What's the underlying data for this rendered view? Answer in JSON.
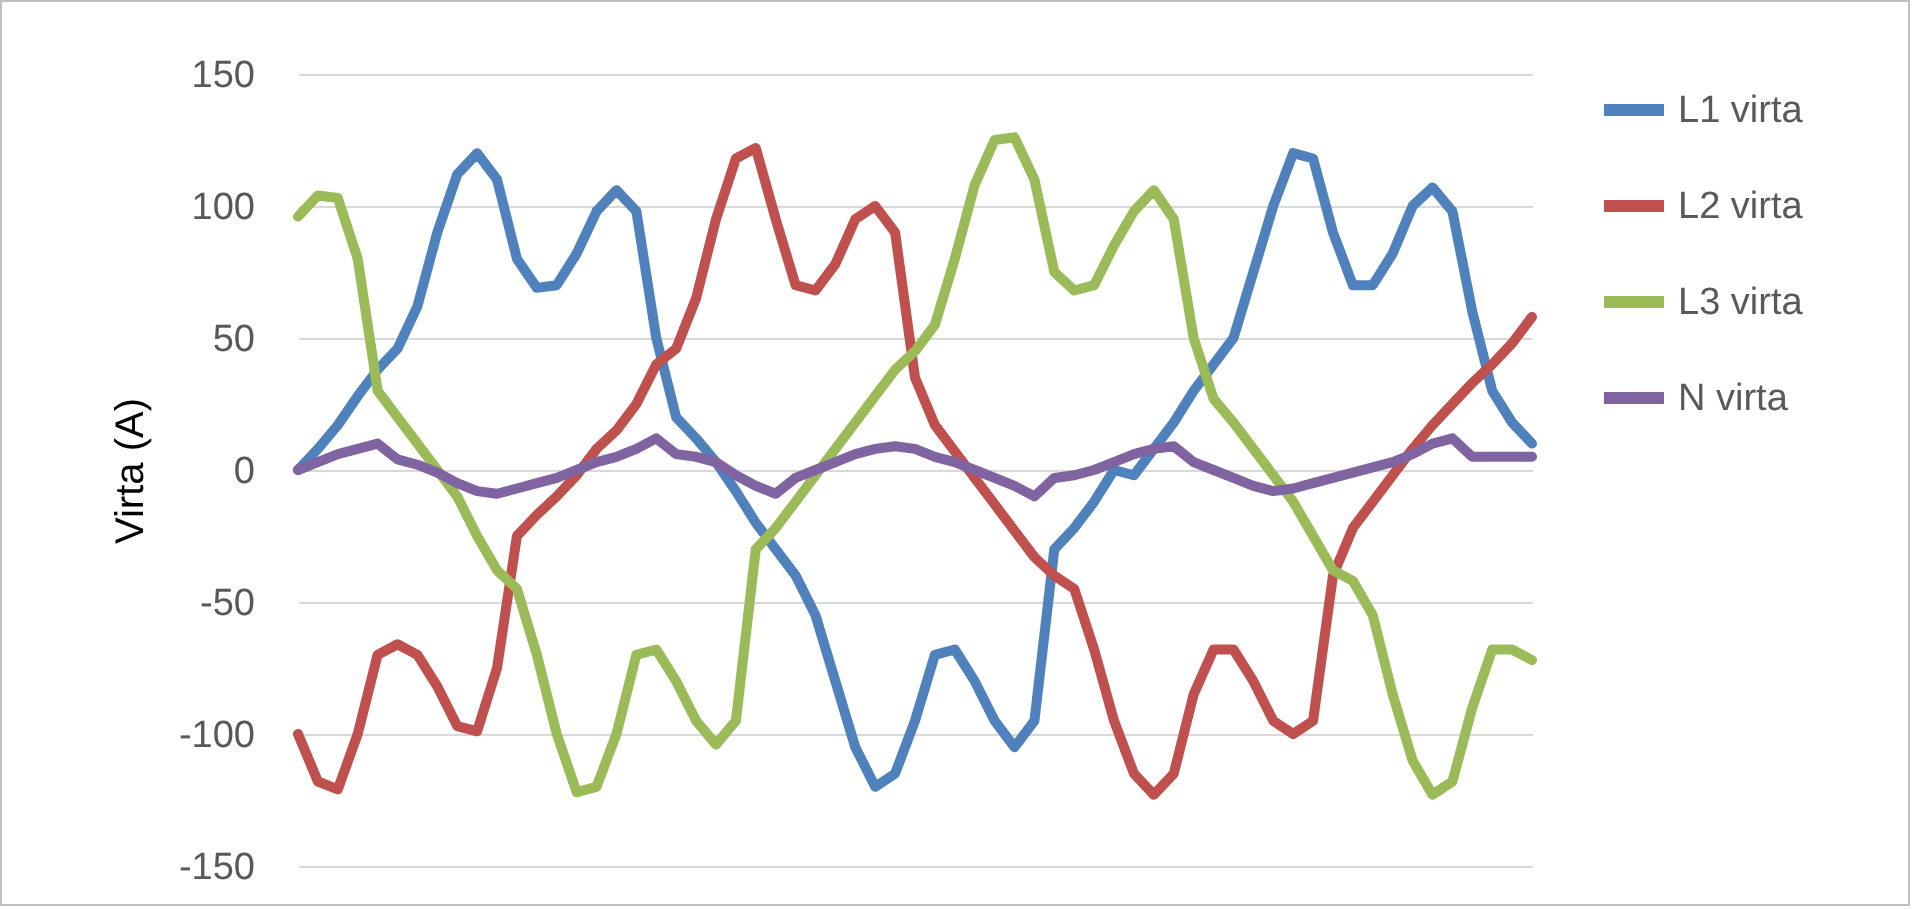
{
  "chart_data": {
    "type": "line",
    "ylabel": "Virta (A)",
    "categories": [
      null,
      null,
      null,
      null,
      null,
      null,
      null,
      null,
      null,
      null,
      null,
      null,
      null,
      null,
      null,
      null,
      null,
      null,
      null,
      null,
      null,
      null,
      null,
      null,
      null,
      null,
      null,
      null,
      null,
      null,
      null,
      null,
      null,
      null,
      null,
      null,
      null,
      null,
      null,
      null,
      null,
      null,
      null,
      null,
      null,
      null,
      null,
      null,
      null,
      null,
      null,
      null,
      null,
      null,
      null,
      null,
      null,
      null,
      null,
      null,
      null,
      null,
      null
    ],
    "series": [
      {
        "name": "L1 virta",
        "color": "#4f81bd",
        "values": [
          0,
          8,
          17,
          28,
          38,
          46,
          62,
          90,
          112,
          120,
          110,
          80,
          69,
          70,
          82,
          98,
          106,
          98,
          50,
          20,
          12,
          3,
          -8,
          -20,
          -30,
          -40,
          -55,
          -80,
          -105,
          -120,
          -115,
          -95,
          -70,
          -68,
          -80,
          -95,
          -105,
          -95,
          -30,
          -22,
          -12,
          0,
          -2,
          8,
          18,
          30,
          40,
          50,
          75,
          100,
          120,
          118,
          90,
          70,
          70,
          82,
          100,
          107,
          98,
          60,
          30,
          18,
          10
        ]
      },
      {
        "name": "L2 virta",
        "color": "#c0504d",
        "values": [
          -100,
          -118,
          -121,
          -100,
          -70,
          -66,
          -70,
          -82,
          -97,
          -99,
          -75,
          -25,
          -17,
          -10,
          -2,
          8,
          15,
          25,
          40,
          46,
          65,
          95,
          118,
          122,
          95,
          70,
          68,
          78,
          95,
          100,
          90,
          35,
          17,
          7,
          -3,
          -13,
          -23,
          -33,
          -40,
          -45,
          -68,
          -95,
          -115,
          -123,
          -115,
          -85,
          -68,
          -68,
          -80,
          -95,
          -100,
          -95,
          -40,
          -22,
          -12,
          -2,
          8,
          17,
          25,
          33,
          40,
          48,
          58
        ]
      },
      {
        "name": "L3 virta",
        "color": "#9bbb59",
        "values": [
          96,
          104,
          103,
          80,
          30,
          20,
          10,
          0,
          -10,
          -25,
          -38,
          -45,
          -70,
          -100,
          -122,
          -120,
          -100,
          -70,
          -68,
          -80,
          -95,
          -104,
          -95,
          -30,
          -22,
          -12,
          -2,
          8,
          18,
          28,
          38,
          45,
          55,
          80,
          108,
          125,
          126,
          110,
          75,
          68,
          70,
          85,
          98,
          106,
          95,
          50,
          27,
          18,
          8,
          -2,
          -12,
          -25,
          -38,
          -42,
          -55,
          -85,
          -110,
          -123,
          -118,
          -90,
          -68,
          -68,
          -72
        ]
      },
      {
        "name": "N virta",
        "color": "#8064a2",
        "values": [
          0,
          3,
          6,
          8,
          10,
          4,
          2,
          -1,
          -5,
          -8,
          -9,
          -7,
          -5,
          -3,
          0,
          3,
          5,
          8,
          12,
          6,
          5,
          3,
          -2,
          -6,
          -9,
          -3,
          0,
          3,
          6,
          8,
          9,
          8,
          5,
          3,
          0,
          -3,
          -6,
          -10,
          -3,
          -2,
          0,
          3,
          6,
          8,
          9,
          3,
          0,
          -3,
          -6,
          -8,
          -7,
          -5,
          -3,
          -1,
          1,
          3,
          6,
          10,
          12,
          5,
          5,
          5,
          5
        ]
      }
    ],
    "ylim": [
      -150,
      150
    ],
    "yticks": [
      -150,
      -100,
      -50,
      0,
      50,
      100,
      150
    ],
    "grid": "y",
    "legend": "right",
    "marker": "none",
    "line_style": "solid"
  }
}
